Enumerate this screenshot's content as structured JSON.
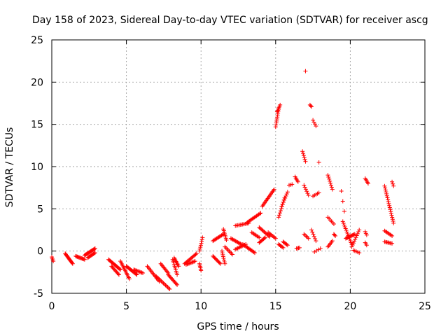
{
  "chart_data": {
    "type": "scatter",
    "title": "Day 158 of 2023, Sidereal Day-to-day VTEC variation (SDTVAR) for receiver ascg",
    "xlabel": "GPS time / hours",
    "ylabel": "SDTVAR / TECUs",
    "xlim": [
      0,
      25
    ],
    "ylim": [
      -5,
      25
    ],
    "xticks": [
      0,
      5,
      10,
      15,
      20,
      25
    ],
    "yticks": [
      -5,
      0,
      5,
      10,
      15,
      20,
      25
    ],
    "xtick_labels": [
      "0",
      "5",
      "10",
      "15",
      "20",
      "25"
    ],
    "ytick_labels": [
      "-5",
      "0",
      "5",
      "10",
      "15",
      "20",
      "25"
    ],
    "grid": true,
    "marker": "plus",
    "color": "#ff0000",
    "series": [
      {
        "name": "SDTVAR",
        "segments": [
          {
            "x0": 0.0,
            "x1": 0.1,
            "y0": -0.7,
            "y1": -1.2,
            "n": 4
          },
          {
            "x0": 0.9,
            "x1": 1.4,
            "y0": -0.3,
            "y1": -1.5,
            "n": 14
          },
          {
            "x0": 1.6,
            "x1": 2.2,
            "y0": -0.6,
            "y1": -1.0,
            "n": 12
          },
          {
            "x0": 2.2,
            "x1": 2.9,
            "y0": -0.5,
            "y1": 0.3,
            "n": 16
          },
          {
            "x0": 2.4,
            "x1": 2.9,
            "y0": -0.8,
            "y1": -0.2,
            "n": 10
          },
          {
            "x0": 3.8,
            "x1": 4.6,
            "y0": -1.0,
            "y1": -2.2,
            "n": 16
          },
          {
            "x0": 4.0,
            "x1": 4.5,
            "y0": -1.8,
            "y1": -2.8,
            "n": 10
          },
          {
            "x0": 4.6,
            "x1": 5.2,
            "y0": -1.2,
            "y1": -3.3,
            "n": 14
          },
          {
            "x0": 5.0,
            "x1": 5.7,
            "y0": -1.8,
            "y1": -2.8,
            "n": 14
          },
          {
            "x0": 5.5,
            "x1": 6.1,
            "y0": -2.2,
            "y1": -2.6,
            "n": 10
          },
          {
            "x0": 6.4,
            "x1": 7.2,
            "y0": -1.8,
            "y1": -3.6,
            "n": 14
          },
          {
            "x0": 7.0,
            "x1": 7.9,
            "y0": -3.0,
            "y1": -4.5,
            "n": 14
          },
          {
            "x0": 7.3,
            "x1": 7.8,
            "y0": -1.5,
            "y1": -2.6,
            "n": 10
          },
          {
            "x0": 7.8,
            "x1": 8.4,
            "y0": -2.8,
            "y1": -4.0,
            "n": 12
          },
          {
            "x0": 8.1,
            "x1": 8.4,
            "y0": -1.0,
            "y1": -2.8,
            "n": 10
          },
          {
            "x0": 8.2,
            "x1": 8.5,
            "y0": -0.8,
            "y1": -1.8,
            "n": 8
          },
          {
            "x0": 8.9,
            "x1": 9.7,
            "y0": -1.5,
            "y1": -0.3,
            "n": 14
          },
          {
            "x0": 9.0,
            "x1": 9.6,
            "y0": -1.6,
            "y1": -1.2,
            "n": 10
          },
          {
            "x0": 9.9,
            "x1": 10.0,
            "y0": -1.5,
            "y1": -2.3,
            "n": 6
          },
          {
            "x0": 9.9,
            "x1": 10.1,
            "y0": 0.0,
            "y1": 1.6,
            "n": 8
          },
          {
            "x0": 10.8,
            "x1": 11.3,
            "y0": -0.6,
            "y1": -1.5,
            "n": 10
          },
          {
            "x0": 10.8,
            "x1": 11.5,
            "y0": 1.2,
            "y1": 2.0,
            "n": 12
          },
          {
            "x0": 11.4,
            "x1": 11.6,
            "y0": 0.0,
            "y1": -1.5,
            "n": 8
          },
          {
            "x0": 11.5,
            "x1": 11.7,
            "y0": 2.6,
            "y1": 1.3,
            "n": 8
          },
          {
            "x0": 11.6,
            "x1": 12.1,
            "y0": 0.5,
            "y1": -0.4,
            "n": 8
          },
          {
            "x0": 12.0,
            "x1": 12.7,
            "y0": 1.5,
            "y1": 0.8,
            "n": 12
          },
          {
            "x0": 12.3,
            "x1": 13.2,
            "y0": 3.0,
            "y1": 3.3,
            "n": 12
          },
          {
            "x0": 12.3,
            "x1": 13.0,
            "y0": 0.2,
            "y1": 0.8,
            "n": 10
          },
          {
            "x0": 12.8,
            "x1": 13.6,
            "y0": 0.8,
            "y1": -0.2,
            "n": 14
          },
          {
            "x0": 13.1,
            "x1": 14.0,
            "y0": 3.4,
            "y1": 4.5,
            "n": 14
          },
          {
            "x0": 13.4,
            "x1": 13.9,
            "y0": 2.2,
            "y1": 1.6,
            "n": 8
          },
          {
            "x0": 13.9,
            "x1": 14.3,
            "y0": 1.0,
            "y1": 1.6,
            "n": 8
          },
          {
            "x0": 13.9,
            "x1": 14.6,
            "y0": 2.8,
            "y1": 1.7,
            "n": 12
          },
          {
            "x0": 14.1,
            "x1": 14.9,
            "y0": 5.3,
            "y1": 7.3,
            "n": 16
          },
          {
            "x0": 14.5,
            "x1": 15.0,
            "y0": 2.2,
            "y1": 1.5,
            "n": 8
          },
          {
            "x0": 15.0,
            "x1": 15.2,
            "y0": 14.7,
            "y1": 16.8,
            "n": 10
          },
          {
            "x0": 15.1,
            "x1": 15.3,
            "y0": 16.5,
            "y1": 17.3,
            "n": 6
          },
          {
            "x0": 15.2,
            "x1": 15.6,
            "y0": 4.0,
            "y1": 6.3,
            "n": 10
          },
          {
            "x0": 15.2,
            "x1": 15.5,
            "y0": 0.8,
            "y1": 0.4,
            "n": 6
          },
          {
            "x0": 15.4,
            "x1": 15.8,
            "y0": 5.3,
            "y1": 7.0,
            "n": 8
          },
          {
            "x0": 15.5,
            "x1": 15.8,
            "y0": 1.1,
            "y1": 0.7,
            "n": 6
          },
          {
            "x0": 15.9,
            "x1": 16.1,
            "y0": 7.8,
            "y1": 7.9,
            "n": 3
          },
          {
            "x0": 16.3,
            "x1": 16.5,
            "y0": 8.8,
            "y1": 8.2,
            "n": 5
          },
          {
            "x0": 16.4,
            "x1": 16.6,
            "y0": 0.3,
            "y1": 0.4,
            "n": 4
          },
          {
            "x0": 16.8,
            "x1": 17.0,
            "y0": 11.8,
            "y1": 10.6,
            "n": 6
          },
          {
            "x0": 16.9,
            "x1": 17.2,
            "y0": 7.8,
            "y1": 6.6,
            "n": 6
          },
          {
            "x0": 16.9,
            "x1": 17.2,
            "y0": 2.0,
            "y1": 1.5,
            "n": 5
          },
          {
            "x0": 17.0,
            "x1": 17.0,
            "y0": 21.3,
            "y1": 21.3,
            "n": 1
          },
          {
            "x0": 17.3,
            "x1": 17.4,
            "y0": 17.3,
            "y1": 17.1,
            "n": 3
          },
          {
            "x0": 17.5,
            "x1": 17.7,
            "y0": 15.5,
            "y1": 14.8,
            "n": 4
          },
          {
            "x0": 17.4,
            "x1": 17.7,
            "y0": 2.5,
            "y1": 1.2,
            "n": 6
          },
          {
            "x0": 17.5,
            "x1": 17.9,
            "y0": 6.5,
            "y1": 6.9,
            "n": 5
          },
          {
            "x0": 17.9,
            "x1": 17.9,
            "y0": 10.5,
            "y1": 10.5,
            "n": 1
          },
          {
            "x0": 17.6,
            "x1": 18.0,
            "y0": -0.1,
            "y1": 0.3,
            "n": 4
          },
          {
            "x0": 18.5,
            "x1": 18.8,
            "y0": 9.0,
            "y1": 7.3,
            "n": 8
          },
          {
            "x0": 18.5,
            "x1": 18.9,
            "y0": 4.0,
            "y1": 3.2,
            "n": 6
          },
          {
            "x0": 18.5,
            "x1": 18.8,
            "y0": 0.5,
            "y1": 1.2,
            "n": 6
          },
          {
            "x0": 18.9,
            "x1": 19.0,
            "y0": 2.0,
            "y1": 1.8,
            "n": 3
          },
          {
            "x0": 19.4,
            "x1": 19.6,
            "y0": 7.1,
            "y1": 4.7,
            "n": 3
          },
          {
            "x0": 19.5,
            "x1": 20.1,
            "y0": 3.5,
            "y1": 0.8,
            "n": 14
          },
          {
            "x0": 19.7,
            "x1": 20.3,
            "y0": 1.5,
            "y1": 2.0,
            "n": 12
          },
          {
            "x0": 20.1,
            "x1": 20.6,
            "y0": 0.5,
            "y1": 2.5,
            "n": 10
          },
          {
            "x0": 20.2,
            "x1": 20.6,
            "y0": 0.1,
            "y1": -0.2,
            "n": 5
          },
          {
            "x0": 21.0,
            "x1": 21.2,
            "y0": 8.6,
            "y1": 8.0,
            "n": 5
          },
          {
            "x0": 21.0,
            "x1": 21.1,
            "y0": 2.3,
            "y1": 1.9,
            "n": 3
          },
          {
            "x0": 21.0,
            "x1": 21.1,
            "y0": 1.0,
            "y1": 0.7,
            "n": 3
          },
          {
            "x0": 22.3,
            "x1": 22.9,
            "y0": 7.7,
            "y1": 3.3,
            "n": 20
          },
          {
            "x0": 22.3,
            "x1": 22.8,
            "y0": 2.4,
            "y1": 1.8,
            "n": 8
          },
          {
            "x0": 22.3,
            "x1": 22.8,
            "y0": 1.1,
            "y1": 0.9,
            "n": 8
          },
          {
            "x0": 22.8,
            "x1": 22.9,
            "y0": 8.2,
            "y1": 7.7,
            "n": 3
          }
        ]
      }
    ]
  }
}
